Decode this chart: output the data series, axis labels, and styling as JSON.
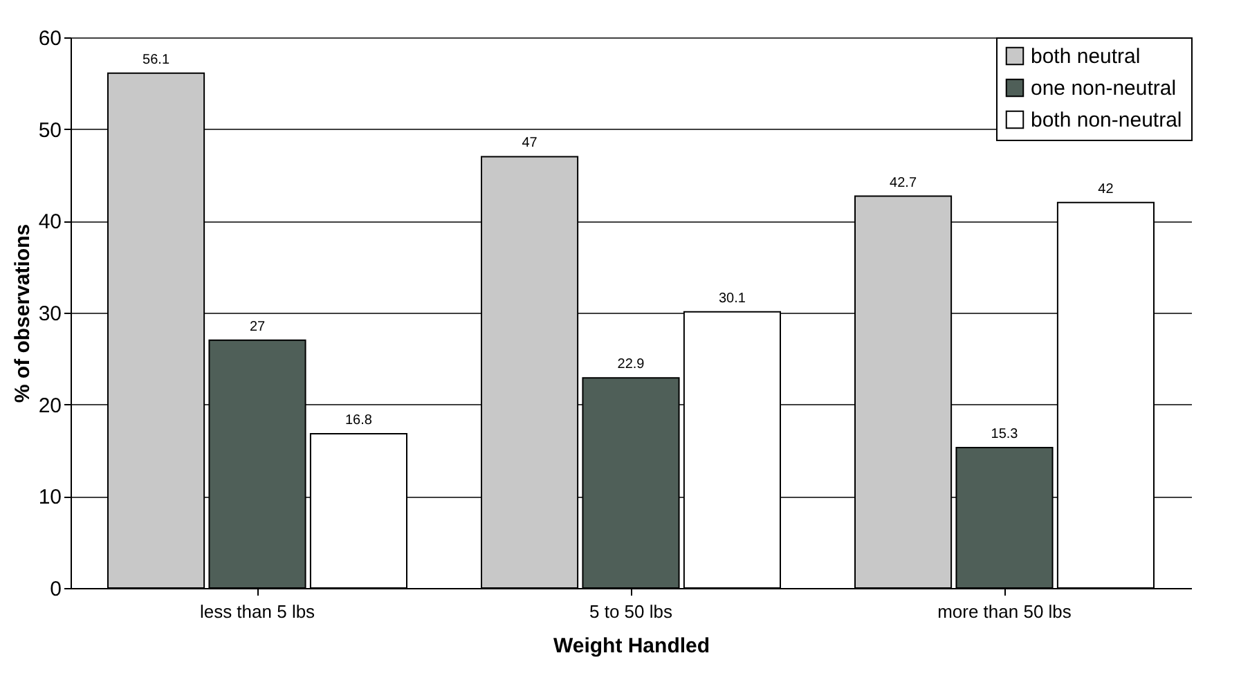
{
  "chart_data": {
    "type": "bar",
    "xlabel": "Weight Handled",
    "ylabel": "% of observations",
    "categories": [
      "less than 5 lbs",
      "5 to 50 lbs",
      "more than 50 lbs"
    ],
    "series": [
      {
        "name": "both neutral",
        "color": "#c8c8c8",
        "values": [
          56.1,
          47,
          42.7
        ]
      },
      {
        "name": "one non-neutral",
        "color": "#4f5f58",
        "values": [
          27,
          22.9,
          15.3
        ]
      },
      {
        "name": "both non-neutral",
        "color": "#ffffff",
        "values": [
          16.8,
          30.1,
          42
        ]
      }
    ],
    "ylim": [
      0,
      60
    ],
    "yticks": [
      0,
      10,
      20,
      30,
      40,
      50,
      60
    ],
    "grid": "y",
    "legend": "top right",
    "data_labels": true
  }
}
